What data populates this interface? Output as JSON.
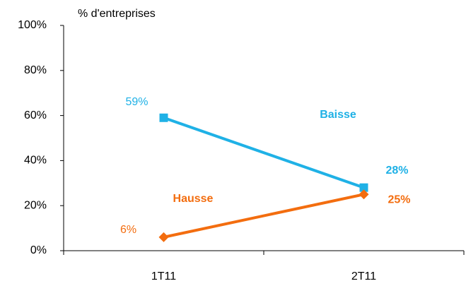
{
  "chart_data": {
    "type": "line",
    "y_label": "% d'entreprises",
    "categories": [
      "1T11",
      "2T11"
    ],
    "series": [
      {
        "name": "Baisse",
        "color": "#1fb1e6",
        "marker": "square",
        "values": [
          59,
          28
        ],
        "value_labels": [
          "59%",
          "28%"
        ]
      },
      {
        "name": "Hausse",
        "color": "#f36d0f",
        "marker": "diamond",
        "values": [
          6,
          25
        ],
        "value_labels": [
          "6%",
          "25%"
        ]
      }
    ],
    "ylim": [
      0,
      100
    ],
    "yticks": [
      {
        "value": 0,
        "label": "0%"
      },
      {
        "value": 20,
        "label": "20%"
      },
      {
        "value": 40,
        "label": "40%"
      },
      {
        "value": 60,
        "label": "60%"
      },
      {
        "value": 80,
        "label": "80%"
      },
      {
        "value": 100,
        "label": "100%"
      }
    ],
    "grid": false
  }
}
